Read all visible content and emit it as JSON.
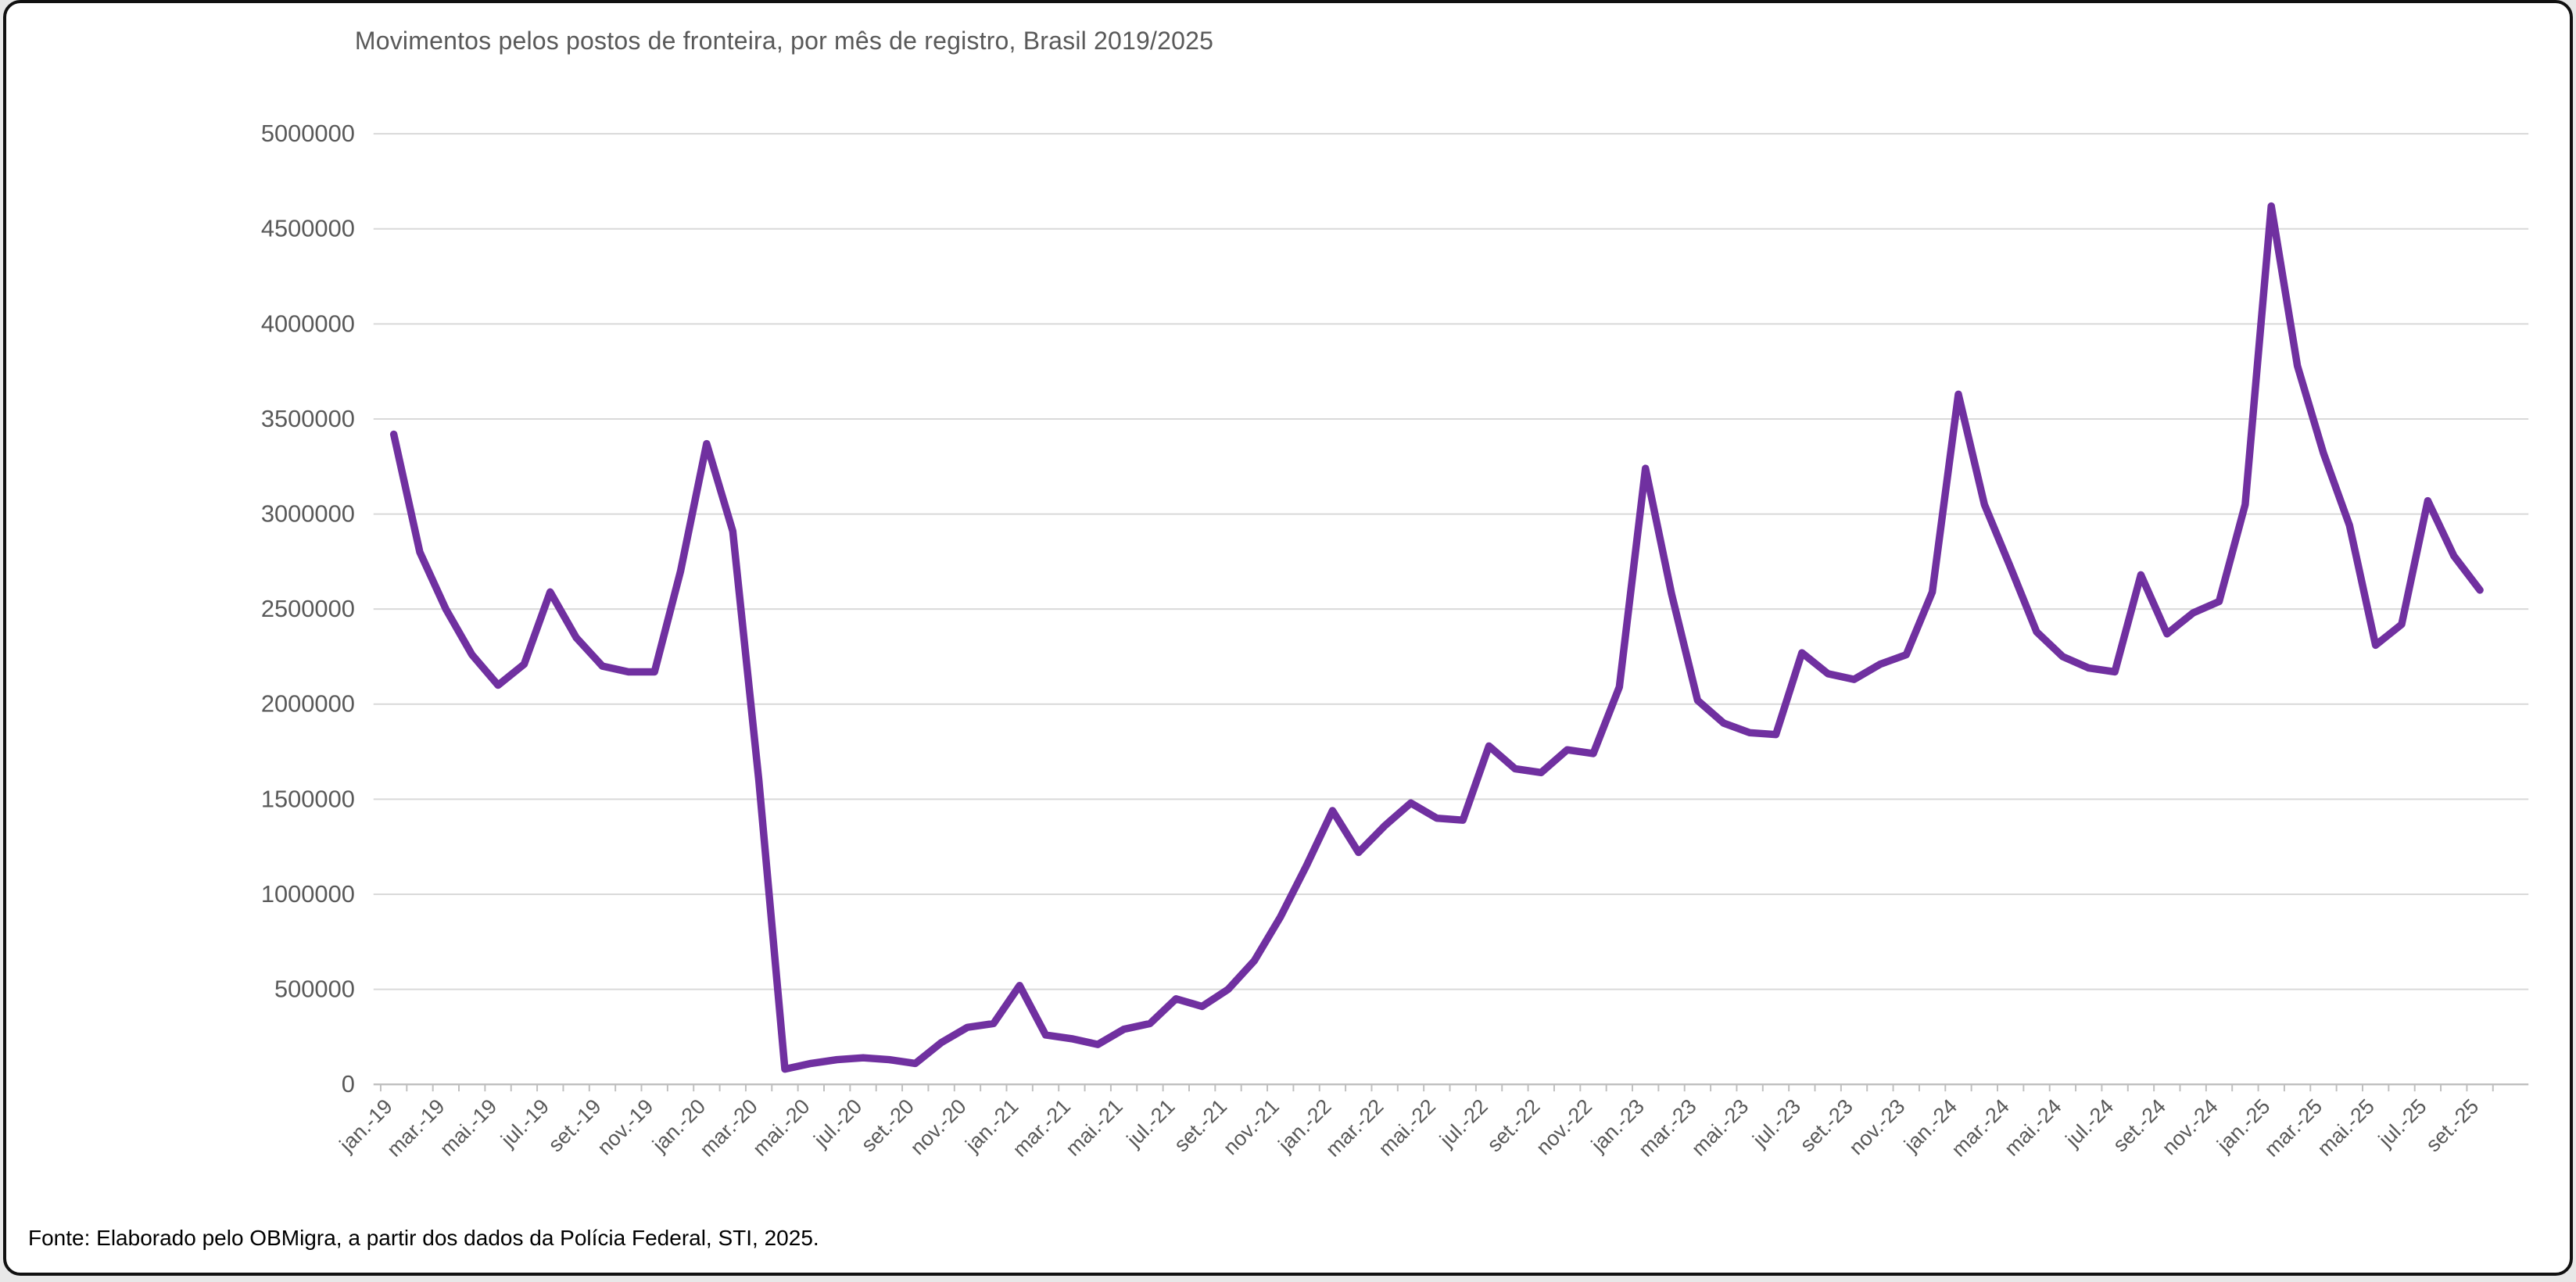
{
  "title": "Movimentos pelos postos de fronteira, por mês de registro, Brasil 2019/2025",
  "source_note": "Fonte: Elaborado pelo OBMigra, a partir dos dados da Polícia Federal, STI, 2025.",
  "colors": {
    "line": "#7030A0",
    "gridline": "#D9D9D9",
    "axis": "#BFBFBF",
    "tick": "#BFBFBF",
    "axis_text": "#595959",
    "title_text": "#595959"
  },
  "chart_data": {
    "type": "line",
    "title": "Movimentos pelos postos de fronteira, por mês de registro, Brasil 2019/2025",
    "xlabel": "",
    "ylabel": "",
    "ylim": [
      0,
      5000000
    ],
    "y_tick_step": 500000,
    "y_tick_labels": [
      "0",
      "500000",
      "1000000",
      "1500000",
      "2000000",
      "2500000",
      "3000000",
      "3500000",
      "4000000",
      "4500000",
      "5000000"
    ],
    "grid": true,
    "legend_position": "none",
    "x_tick_label_every": 2,
    "categories": [
      "jan.-19",
      "fev.-19",
      "mar.-19",
      "abr.-19",
      "mai.-19",
      "jun.-19",
      "jul.-19",
      "ago.-19",
      "set.-19",
      "out.-19",
      "nov.-19",
      "dez.-19",
      "jan.-20",
      "fev.-20",
      "mar.-20",
      "abr.-20",
      "mai.-20",
      "jun.-20",
      "jul.-20",
      "ago.-20",
      "set.-20",
      "out.-20",
      "nov.-20",
      "dez.-20",
      "jan.-21",
      "fev.-21",
      "mar.-21",
      "abr.-21",
      "mai.-21",
      "jun.-21",
      "jul.-21",
      "ago.-21",
      "set.-21",
      "out.-21",
      "nov.-21",
      "dez.-21",
      "jan.-22",
      "fev.-22",
      "mar.-22",
      "abr.-22",
      "mai.-22",
      "jun.-22",
      "jul.-22",
      "ago.-22",
      "set.-22",
      "out.-22",
      "nov.-22",
      "dez.-22",
      "jan.-23",
      "fev.-23",
      "mar.-23",
      "abr.-23",
      "mai.-23",
      "jun.-23",
      "jul.-23",
      "ago.-23",
      "set.-23",
      "out.-23",
      "nov.-23",
      "dez.-23",
      "jan.-24",
      "fev.-24",
      "mar.-24",
      "abr.-24",
      "mai.-24",
      "jun.-24",
      "jul.-24",
      "ago.-24",
      "set.-24",
      "out.-24",
      "nov.-24",
      "dez.-24",
      "jan.-25",
      "fev.-25",
      "mar.-25",
      "abr.-25",
      "mai.-25",
      "jun.-25",
      "jul.-25",
      "ago.-25",
      "set.-25"
    ],
    "values": [
      3420000,
      2800000,
      2500000,
      2260000,
      2100000,
      2210000,
      2590000,
      2350000,
      2200000,
      2170000,
      2170000,
      2700000,
      3370000,
      2910000,
      1600000,
      80000,
      110000,
      130000,
      140000,
      130000,
      110000,
      220000,
      300000,
      320000,
      520000,
      260000,
      240000,
      210000,
      290000,
      320000,
      450000,
      410000,
      500000,
      650000,
      880000,
      1150000,
      1440000,
      1220000,
      1360000,
      1480000,
      1400000,
      1390000,
      1780000,
      1660000,
      1640000,
      1760000,
      1740000,
      2090000,
      3240000,
      2580000,
      2020000,
      1900000,
      1850000,
      1840000,
      2270000,
      2160000,
      2130000,
      2210000,
      2260000,
      2590000,
      3630000,
      3050000,
      2720000,
      2380000,
      2250000,
      2190000,
      2170000,
      2680000,
      2370000,
      2480000,
      2540000,
      3050000,
      4620000,
      3780000,
      3320000,
      2940000,
      2310000,
      2420000,
      3070000,
      2780000,
      2600000
    ]
  }
}
